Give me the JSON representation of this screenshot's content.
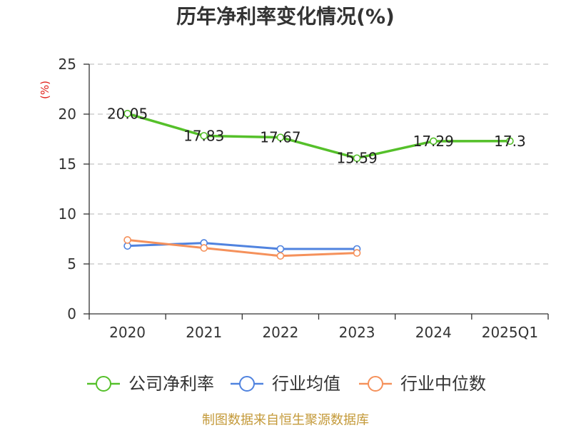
{
  "footer": "制图数据来自恒生聚源数据库",
  "chart_data": {
    "type": "line",
    "title": "历年净利率变化情况(%)",
    "ylabel": "(%)",
    "categories": [
      "2020",
      "2021",
      "2022",
      "2023",
      "2024",
      "2025Q1"
    ],
    "ylim": [
      0,
      25
    ],
    "yticks": [
      0,
      5,
      10,
      15,
      20,
      25
    ],
    "grid": true,
    "legend": "bottom",
    "series": [
      {
        "name": "公司净利率",
        "color": "#55c02a",
        "data_labels": true,
        "values": [
          20.05,
          17.83,
          17.67,
          15.59,
          17.29,
          17.3
        ]
      },
      {
        "name": "行业均值",
        "color": "#5083df",
        "data_labels": false,
        "values": [
          6.8,
          7.1,
          6.5,
          6.5,
          null,
          null
        ]
      },
      {
        "name": "行业中位数",
        "color": "#f5915b",
        "data_labels": false,
        "values": [
          7.4,
          6.6,
          5.8,
          6.1,
          null,
          null
        ]
      }
    ]
  }
}
